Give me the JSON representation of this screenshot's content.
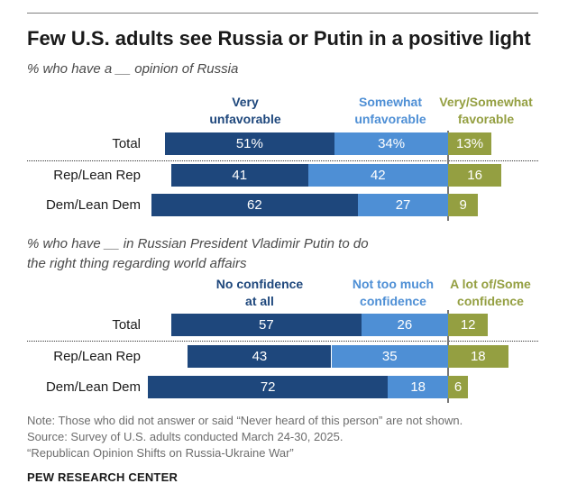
{
  "title": "Few U.S. adults see Russia or Putin in a positive light",
  "colors": {
    "very_dark": "#1e477c",
    "medium": "#4e8fd5",
    "olive": "#949f41"
  },
  "chart_data": [
    {
      "type": "bar",
      "stacked": true,
      "orientation": "horizontal",
      "subtitle": "% who have a __ opinion of Russia",
      "series_headers": [
        "Very unfavorable",
        "Somewhat unfavorable",
        "Very/Somewhat favorable"
      ],
      "categories": [
        "Total",
        "Rep/Lean Rep",
        "Dem/Lean Dem"
      ],
      "series": [
        {
          "name": "Very unfavorable",
          "values": [
            51,
            41,
            62
          ],
          "labels": [
            "51%",
            "41",
            "62"
          ]
        },
        {
          "name": "Somewhat unfavorable",
          "values": [
            34,
            42,
            27
          ],
          "labels": [
            "34%",
            "42",
            "27"
          ]
        },
        {
          "name": "Very/Somewhat favorable",
          "values": [
            13,
            16,
            9
          ],
          "labels": [
            "13%",
            "16",
            "9"
          ]
        }
      ]
    },
    {
      "type": "bar",
      "stacked": true,
      "orientation": "horizontal",
      "subtitle_lines": [
        "% who have __ in Russian President Vladimir Putin to do",
        "the right thing regarding world affairs"
      ],
      "series_headers": [
        "No confidence at all",
        "Not too much confidence",
        "A lot of/Some confidence"
      ],
      "categories": [
        "Total",
        "Rep/Lean Rep",
        "Dem/Lean Dem"
      ],
      "series": [
        {
          "name": "No confidence at all",
          "values": [
            57,
            43,
            72
          ],
          "labels": [
            "57",
            "43",
            "72"
          ]
        },
        {
          "name": "Not too much confidence",
          "values": [
            26,
            35,
            18
          ],
          "labels": [
            "26",
            "35",
            "18"
          ]
        },
        {
          "name": "A lot of/Some confidence",
          "values": [
            12,
            18,
            6
          ],
          "labels": [
            "12",
            "18",
            "6"
          ]
        }
      ]
    }
  ],
  "header1": {
    "very": [
      "Very",
      "unfavorable"
    ],
    "somewhat": [
      "Somewhat",
      "unfavorable"
    ],
    "favorable": [
      "Very/Somewhat",
      "favorable"
    ]
  },
  "header2": {
    "none": [
      "No confidence",
      "at all"
    ],
    "not_much": [
      "Not too much",
      "confidence"
    ],
    "some": [
      "A lot of/Some",
      "confidence"
    ]
  },
  "notes": [
    "Note: Those who did not answer or said “Never heard of this person” are not shown.",
    "Source: Survey of U.S. adults conducted March 24-30, 2025.",
    "“Republican Opinion Shifts on Russia-Ukraine War”"
  ],
  "brand": "PEW RESEARCH CENTER"
}
